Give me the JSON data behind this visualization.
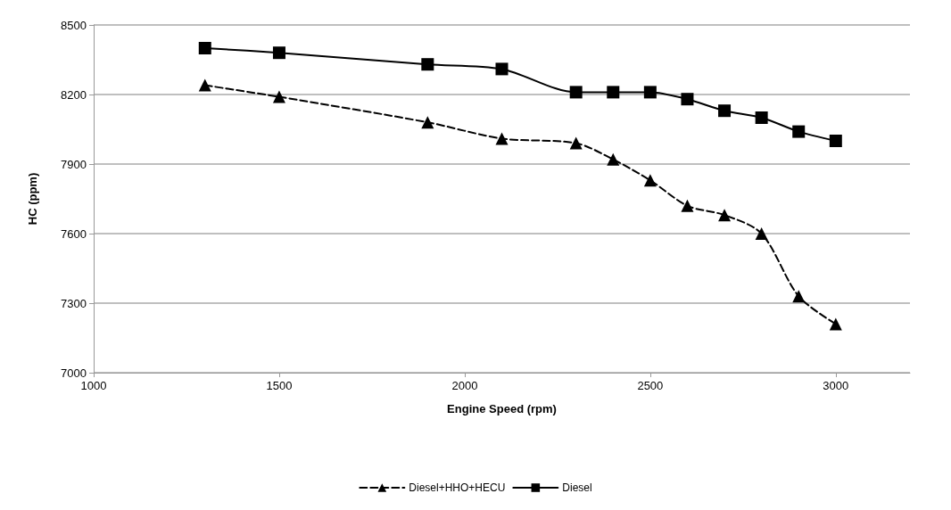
{
  "chart_data": {
    "type": "line",
    "xlabel": "Engine Speed (rpm)",
    "ylabel": "HC (ppm)",
    "x": [
      1300,
      1500,
      1900,
      2100,
      2300,
      2400,
      2500,
      2600,
      2700,
      2800,
      2900,
      3000
    ],
    "series": [
      {
        "name": "Diesel+HHO+HECU",
        "color": "#000000",
        "marker": "triangle",
        "line_style": "dashed",
        "values": [
          8240,
          8190,
          8080,
          8010,
          7990,
          7920,
          7830,
          7720,
          7680,
          7600,
          7330,
          7210
        ]
      },
      {
        "name": "Diesel",
        "color": "#000000",
        "marker": "square",
        "line_style": "solid",
        "values": [
          8400,
          8380,
          8330,
          8310,
          8210,
          8210,
          8210,
          8180,
          8130,
          8100,
          8040,
          8000
        ]
      }
    ],
    "xlim": [
      1000,
      3200
    ],
    "xticks": [
      1000,
      1500,
      2000,
      2500,
      3000
    ],
    "ylim": [
      7000,
      8500
    ],
    "yticks": [
      7000,
      7300,
      7600,
      7900,
      8200,
      8500
    ],
    "grid": "y",
    "legend": "bottom"
  }
}
